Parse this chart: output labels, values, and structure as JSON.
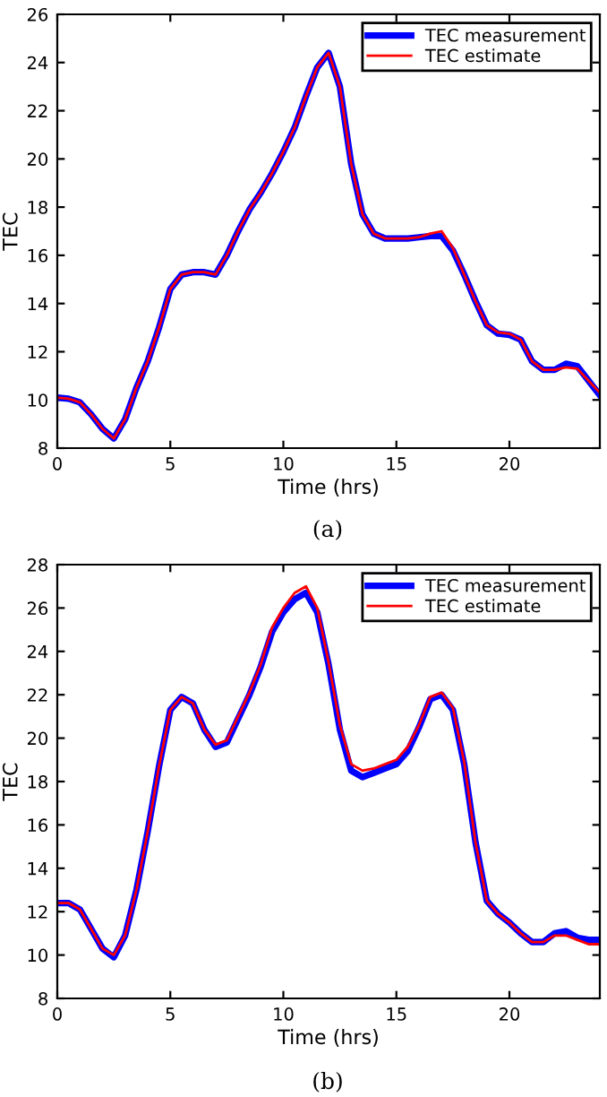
{
  "chart_data": [
    {
      "type": "line",
      "xlabel": "Time (hrs)",
      "ylabel": "TEC",
      "annotations": [
        "(a)"
      ],
      "xlim": [
        0,
        24
      ],
      "ylim": [
        8,
        26
      ],
      "xticks": [
        0,
        5,
        10,
        15,
        20
      ],
      "yticks": [
        8,
        10,
        12,
        14,
        16,
        18,
        20,
        22,
        24,
        26
      ],
      "grid": false,
      "legend": "top right",
      "x": [
        0,
        0.5,
        1,
        1.5,
        2,
        2.5,
        3,
        3.5,
        4,
        4.5,
        5,
        5.5,
        6,
        6.5,
        7,
        7.5,
        8,
        8.5,
        9,
        9.5,
        10,
        10.5,
        11,
        11.5,
        12,
        12.5,
        13,
        13.5,
        14,
        14.5,
        15,
        15.5,
        16,
        16.5,
        17,
        17.5,
        18,
        18.5,
        19,
        19.5,
        20,
        20.5,
        21,
        21.5,
        22,
        22.5,
        23,
        23.5,
        24
      ],
      "series": [
        {
          "name": "TEC measurement",
          "color": "#0000ff",
          "values": [
            10.1,
            10.05,
            9.9,
            9.4,
            8.8,
            8.4,
            9.2,
            10.5,
            11.6,
            13.0,
            14.6,
            15.2,
            15.3,
            15.3,
            15.2,
            16.0,
            17.0,
            17.9,
            18.6,
            19.4,
            20.3,
            21.3,
            22.6,
            23.8,
            24.4,
            23.0,
            19.8,
            17.7,
            16.9,
            16.7,
            16.7,
            16.7,
            16.75,
            16.8,
            16.8,
            16.2,
            15.2,
            14.1,
            13.1,
            12.75,
            12.7,
            12.5,
            11.6,
            11.25,
            11.25,
            11.5,
            11.4,
            10.8,
            10.2
          ]
        },
        {
          "name": "TEC estimate",
          "color": "#ff0000",
          "values": [
            10.1,
            10.05,
            9.9,
            9.4,
            8.8,
            8.4,
            9.2,
            10.5,
            11.6,
            13.0,
            14.6,
            15.2,
            15.3,
            15.3,
            15.2,
            16.0,
            17.0,
            17.9,
            18.6,
            19.4,
            20.3,
            21.3,
            22.6,
            23.8,
            24.4,
            23.0,
            19.8,
            17.7,
            16.9,
            16.7,
            16.7,
            16.7,
            16.75,
            16.9,
            17.0,
            16.3,
            15.2,
            14.1,
            13.1,
            12.8,
            12.75,
            12.5,
            11.6,
            11.25,
            11.25,
            11.35,
            11.3,
            10.8,
            10.3
          ]
        }
      ]
    },
    {
      "type": "line",
      "xlabel": "Time (hrs)",
      "ylabel": "TEC",
      "annotations": [
        "(b)"
      ],
      "xlim": [
        0,
        24
      ],
      "ylim": [
        8,
        28
      ],
      "xticks": [
        0,
        5,
        10,
        15,
        20
      ],
      "yticks": [
        8,
        10,
        12,
        14,
        16,
        18,
        20,
        22,
        24,
        26,
        28
      ],
      "grid": false,
      "legend": "top right",
      "x": [
        0,
        0.5,
        1,
        1.5,
        2,
        2.5,
        3,
        3.5,
        4,
        4.5,
        5,
        5.5,
        6,
        6.5,
        7,
        7.5,
        8,
        8.5,
        9,
        9.5,
        10,
        10.5,
        11,
        11.5,
        12,
        12.5,
        13,
        13.5,
        14,
        14.5,
        15,
        15.5,
        16,
        16.5,
        17,
        17.5,
        18,
        18.5,
        19,
        19.5,
        20,
        20.5,
        21,
        21.5,
        22,
        22.5,
        23,
        23.5,
        24
      ],
      "series": [
        {
          "name": "TEC measurement",
          "color": "#0000ff",
          "values": [
            12.4,
            12.4,
            12.1,
            11.2,
            10.3,
            9.9,
            10.9,
            13.0,
            15.7,
            18.7,
            21.3,
            21.9,
            21.6,
            20.4,
            19.6,
            19.8,
            20.9,
            22.0,
            23.3,
            24.9,
            25.8,
            26.4,
            26.7,
            25.8,
            23.4,
            20.4,
            18.5,
            18.2,
            18.4,
            18.6,
            18.8,
            19.4,
            20.5,
            21.8,
            22.0,
            21.3,
            18.8,
            15.2,
            12.5,
            11.9,
            11.5,
            11.0,
            10.6,
            10.6,
            11.0,
            11.1,
            10.8,
            10.7,
            10.7
          ]
        },
        {
          "name": "TEC estimate",
          "color": "#ff0000",
          "values": [
            12.4,
            12.4,
            12.1,
            11.2,
            10.3,
            10.0,
            10.9,
            13.0,
            15.7,
            18.7,
            21.3,
            21.9,
            21.6,
            20.4,
            19.7,
            19.9,
            21.0,
            22.1,
            23.4,
            25.1,
            26.0,
            26.7,
            27.0,
            26.0,
            23.5,
            20.6,
            18.8,
            18.5,
            18.6,
            18.8,
            19.0,
            19.6,
            20.6,
            21.9,
            22.1,
            21.4,
            18.9,
            15.2,
            12.5,
            11.9,
            11.5,
            11.0,
            10.6,
            10.6,
            10.9,
            10.9,
            10.7,
            10.5,
            10.5
          ]
        }
      ]
    }
  ]
}
